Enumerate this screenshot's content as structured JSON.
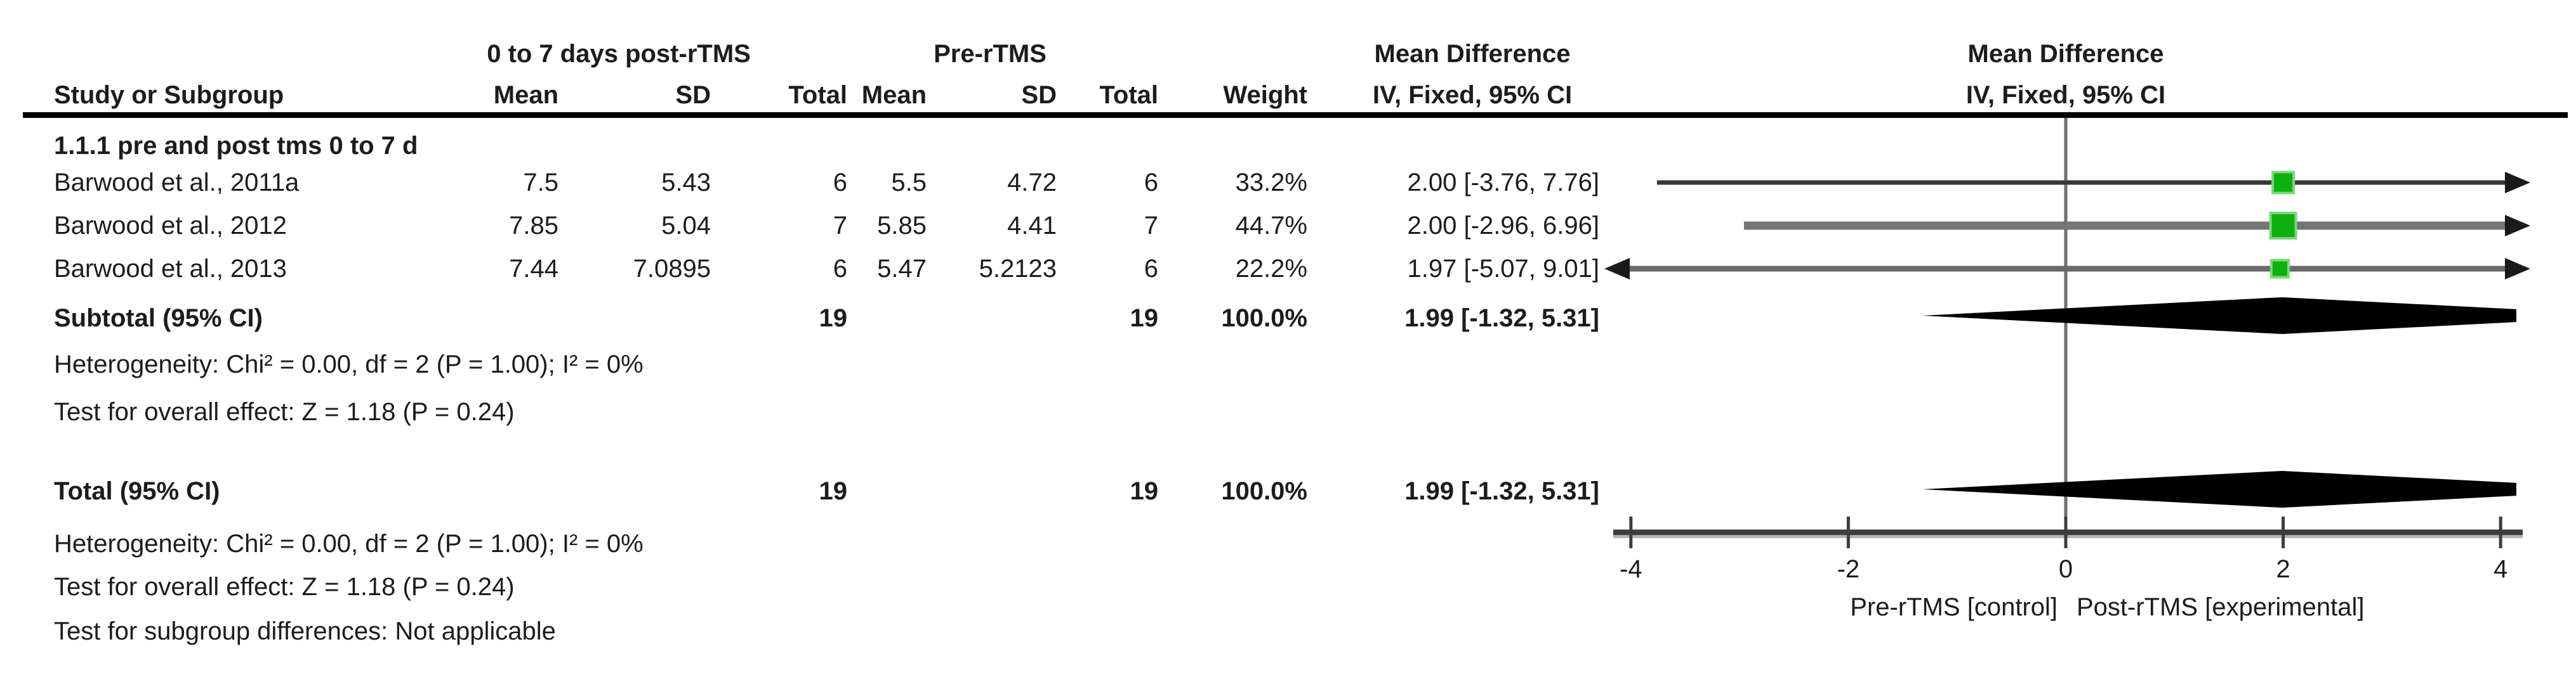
{
  "table": {
    "group_headers": {
      "experimental": "0 to 7 days post-rTMS",
      "control": "Pre-rTMS",
      "md_text_col": "Mean Difference",
      "md_plot_col": "Mean Difference"
    },
    "col_headers": {
      "study": "Study or Subgroup",
      "mean": "Mean",
      "sd": "SD",
      "total": "Total",
      "weight": "Weight",
      "ci": "IV, Fixed, 95% CI",
      "ci_plot": "IV, Fixed, 95% CI"
    },
    "subgroup_label": "1.1.1 pre and post tms 0 to 7 d",
    "rows": [
      {
        "study": "Barwood et al., 2011a",
        "mean1": "7.5",
        "sd1": "5.43",
        "total1": "6",
        "mean2": "5.5",
        "sd2": "4.72",
        "total2": "6",
        "weight": "33.2%",
        "md_ci": "2.00 [-3.76, 7.76]"
      },
      {
        "study": "Barwood et al., 2012",
        "mean1": "7.85",
        "sd1": "5.04",
        "total1": "7",
        "mean2": "5.85",
        "sd2": "4.41",
        "total2": "7",
        "weight": "44.7%",
        "md_ci": "2.00 [-2.96, 6.96]"
      },
      {
        "study": "Barwood et al., 2013",
        "mean1": "7.44",
        "sd1": "7.0895",
        "total1": "6",
        "mean2": "5.47",
        "sd2": "5.2123",
        "total2": "6",
        "weight": "22.2%",
        "md_ci": "1.97 [-5.07, 9.01]"
      }
    ],
    "subtotal": {
      "label": "Subtotal (95% CI)",
      "total1": "19",
      "total2": "19",
      "weight": "100.0%",
      "md_ci": "1.99 [-1.32, 5.31]"
    },
    "subgroup_footer": {
      "heterogeneity": "Heterogeneity: Chi² = 0.00, df = 2 (P = 1.00); I² = 0%",
      "overall_effect": "Test for overall effect: Z = 1.18 (P = 0.24)"
    },
    "total": {
      "label": "Total (95% CI)",
      "total1": "19",
      "total2": "19",
      "weight": "100.0%",
      "md_ci": "1.99 [-1.32, 5.31]"
    },
    "footer": {
      "heterogeneity": "Heterogeneity: Chi² = 0.00, df = 2 (P = 1.00); I² = 0%",
      "overall_effect": "Test for overall effect: Z = 1.18 (P = 0.24)",
      "subgroup_differences": "Test for subgroup differences: Not applicable"
    }
  },
  "chart_data": {
    "type": "forest",
    "effect_measure": "Mean Difference",
    "method": "IV, Fixed, 95% CI",
    "x_ticks": [
      -4,
      -2,
      0,
      2,
      4
    ],
    "x_tick_labels": [
      "-4",
      "-2",
      "0",
      "2",
      "4"
    ],
    "x_plot_range": [
      -4.15,
      4.15
    ],
    "studies": [
      {
        "name": "Barwood et al., 2011a",
        "md": 2.0,
        "ci_low": -3.76,
        "ci_high": 7.76,
        "weight_pct": 33.2
      },
      {
        "name": "Barwood et al., 2012",
        "md": 2.0,
        "ci_low": -2.96,
        "ci_high": 6.96,
        "weight_pct": 44.7
      },
      {
        "name": "Barwood et al., 2013",
        "md": 1.97,
        "ci_low": -5.07,
        "ci_high": 9.01,
        "weight_pct": 22.2
      }
    ],
    "subtotal": {
      "label": "Subtotal (95% CI)",
      "md": 1.99,
      "ci_low": -1.32,
      "ci_high": 5.31
    },
    "total": {
      "label": "Total (95% CI)",
      "md": 1.99,
      "ci_low": -1.32,
      "ci_high": 5.31
    },
    "axis_captions": {
      "left": "Pre-rTMS [control]",
      "right": "Post-rTMS [experimental]"
    },
    "legend_position": "bottom",
    "grid": false,
    "colors": {
      "marker": "#0db10d",
      "marker_edge": "#7bd87b",
      "diamond": "#000000",
      "axis": "#3d3d3d",
      "axis_shadow": "#b5b5b5",
      "zero_line": "#6e6e6e",
      "text": "#1c1c1c"
    }
  }
}
